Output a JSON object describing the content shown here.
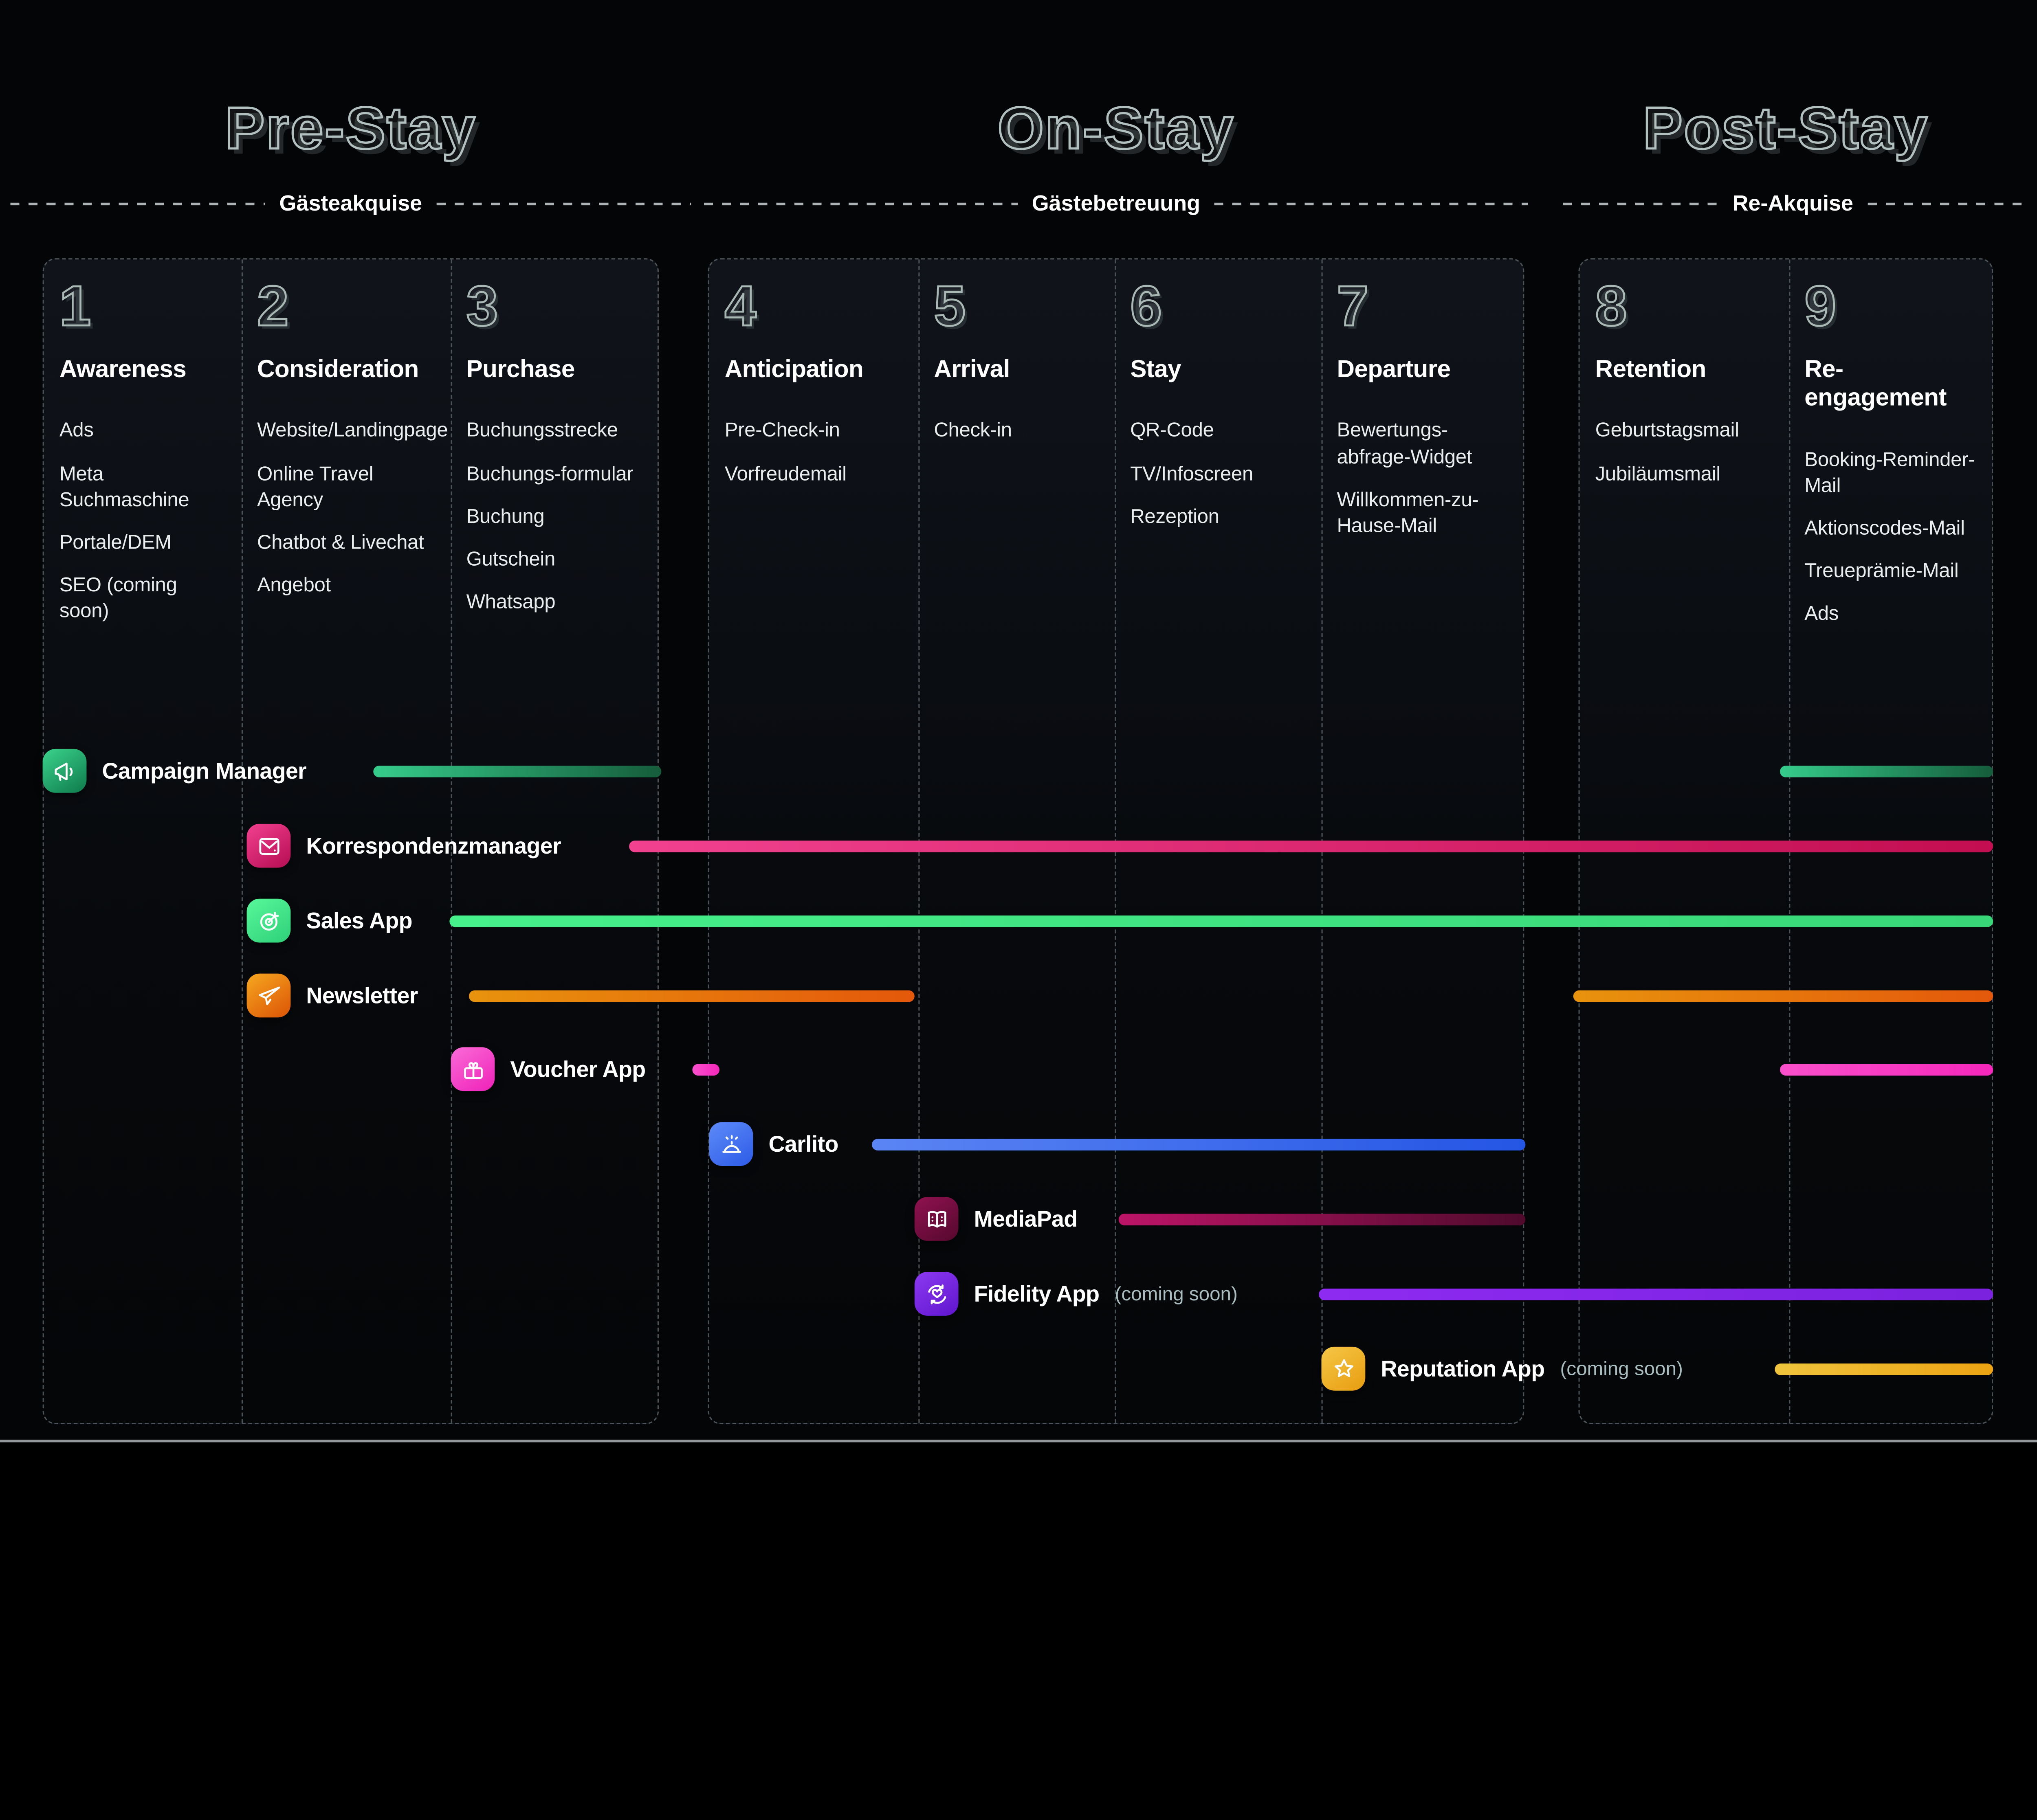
{
  "phases": [
    {
      "label": "Pre-Stay",
      "sublabel": "Gästeakquise"
    },
    {
      "label": "On-Stay",
      "sublabel": "Gästebetreuung"
    },
    {
      "label": "Post-Stay",
      "sublabel": "Re-Akquise"
    }
  ],
  "columns": [
    {
      "number": "1",
      "title": "Awareness",
      "items": [
        "Ads",
        "Meta Suchmaschine",
        "Portale/DEM",
        "SEO (coming soon)"
      ]
    },
    {
      "number": "2",
      "title": "Consideration",
      "items": [
        "Website/Landingpage",
        "Online Travel Agency",
        "Chatbot & Livechat",
        "Angebot"
      ]
    },
    {
      "number": "3",
      "title": "Purchase",
      "items": [
        "Buchungsstrecke",
        "Buchungs-formular",
        "Buchung",
        "Gutschein",
        "Whatsapp"
      ]
    },
    {
      "number": "4",
      "title": "Anticipation",
      "items": [
        "Pre-Check-in",
        "Vorfreudemail"
      ]
    },
    {
      "number": "5",
      "title": "Arrival",
      "items": [
        "Check-in"
      ]
    },
    {
      "number": "6",
      "title": "Stay",
      "items": [
        "QR-Code",
        "TV/Infoscreen",
        "Rezeption"
      ]
    },
    {
      "number": "7",
      "title": "Departure",
      "items": [
        "Bewertungs-abfrage-Widget",
        "Willkommen-zu-Hause-Mail"
      ]
    },
    {
      "number": "8",
      "title": "Retention",
      "items": [
        "Geburtstagsmail",
        "Jubiläumsmail"
      ]
    },
    {
      "number": "9",
      "title": "Re-engagement",
      "items": [
        "Booking-Reminder-Mail",
        "Aktionscodes-Mail",
        "Treueprämie-Mail",
        "Ads"
      ]
    }
  ],
  "products": [
    {
      "name": "Campaign Manager",
      "suffix": "",
      "icon": "megaphone-icon",
      "icon_colors": [
        "#3bd38c",
        "#0e7a4c"
      ],
      "bar_colors": [
        "#35cc8b",
        "#155c3b"
      ]
    },
    {
      "name": "Korrespondenzmanager",
      "suffix": "",
      "icon": "envelope-icon",
      "icon_colors": [
        "#f2418f",
        "#b50d53"
      ],
      "bar_colors": [
        "#f2418f",
        "#c30e51"
      ]
    },
    {
      "name": "Sales App",
      "suffix": "",
      "icon": "target-icon",
      "icon_colors": [
        "#58f79b",
        "#2ed178"
      ],
      "bar_colors": [
        "#46f08a",
        "#38d677"
      ]
    },
    {
      "name": "Newsletter",
      "suffix": "",
      "icon": "paper-plane-icon",
      "icon_colors": [
        "#f6a81f",
        "#dc5306"
      ],
      "bar_colors": [
        "#e8930d",
        "#e4580b"
      ]
    },
    {
      "name": "Voucher App",
      "suffix": "",
      "icon": "gift-icon",
      "icon_colors": [
        "#fa6cd8",
        "#ef21b8"
      ],
      "bar_colors": [
        "#fa50cc",
        "#f527bb"
      ]
    },
    {
      "name": "Carlito",
      "suffix": "",
      "icon": "service-bell-icon",
      "icon_colors": [
        "#5d8bf8",
        "#2d5be7"
      ],
      "bar_colors": [
        "#5b85f4",
        "#2455e4"
      ]
    },
    {
      "name": "MediaPad",
      "suffix": "",
      "icon": "open-book-icon",
      "icon_colors": [
        "#901250",
        "#55082e"
      ],
      "bar_colors": [
        "#bd1468",
        "#4f0a2c"
      ]
    },
    {
      "name": "Fidelity App",
      "suffix": "(coming soon)",
      "icon": "loyalty-heart-icon",
      "icon_colors": [
        "#8c3af1",
        "#5f15cd"
      ],
      "bar_colors": [
        "#8e2bf1",
        "#7a22de"
      ]
    },
    {
      "name": "Reputation App",
      "suffix": "(coming soon)",
      "icon": "star-icon",
      "icon_colors": [
        "#f5c847",
        "#e89c0f"
      ],
      "bar_colors": [
        "#f0c43d",
        "#eda313"
      ]
    }
  ],
  "colors": {
    "background": "#040507",
    "outline": "#b2c0bf",
    "dashed_border": "#4b5258",
    "item_text": "#e9edee",
    "coming_soon_text": "#a9bcbf",
    "rule": "#d9dfe1"
  }
}
